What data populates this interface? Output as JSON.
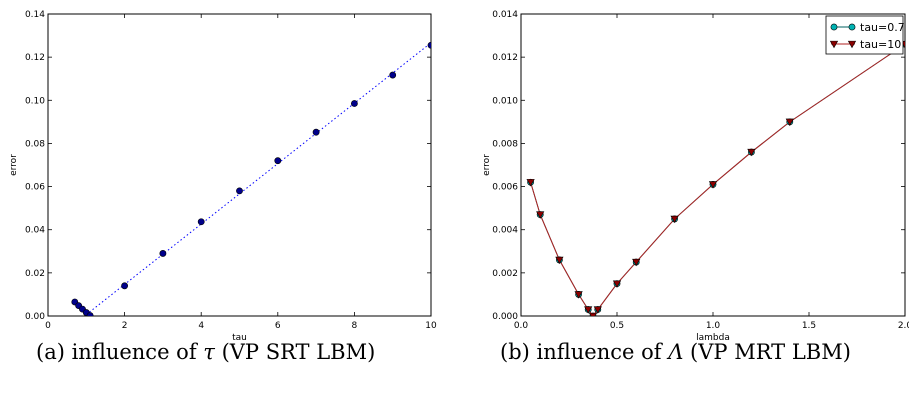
{
  "captions": {
    "a": {
      "prefix": "(a) influence of ",
      "symbol": "τ",
      "suffix": " (VP SRT LBM)"
    },
    "b": {
      "prefix": "(b) influence of ",
      "symbol": "Λ",
      "suffix": " (VP MRT LBM)"
    }
  },
  "chart_data": [
    {
      "type": "scatter",
      "xlabel": "tau",
      "ylabel": "error",
      "xlim": [
        0,
        10
      ],
      "ylim": [
        0,
        0.14
      ],
      "xticks": [
        0,
        2,
        4,
        6,
        8,
        10
      ],
      "yticks": [
        0.0,
        0.02,
        0.04,
        0.06,
        0.08,
        0.1,
        0.12,
        0.14
      ],
      "x_tick_labels": [
        "0",
        "2",
        "4",
        "6",
        "8",
        "10"
      ],
      "y_tick_labels": [
        "0.00",
        "0.02",
        "0.04",
        "0.06",
        "0.08",
        "0.10",
        "0.12",
        "0.14"
      ],
      "grid": false,
      "series": [
        {
          "color": "#00008b",
          "marker": "circle",
          "line_style": "dotted",
          "line_color": "#0000ff",
          "x": [
            0.7,
            0.8,
            0.9,
            1.0,
            1.1,
            2,
            3,
            4,
            5,
            6,
            7,
            8,
            9,
            10
          ],
          "y": [
            0.0065,
            0.0048,
            0.0032,
            0.0016,
            0.0002,
            0.014,
            0.029,
            0.0437,
            0.058,
            0.072,
            0.0852,
            0.0985,
            0.1117,
            0.1255
          ]
        }
      ]
    },
    {
      "type": "line",
      "xlabel": "lambda",
      "ylabel": "error",
      "xlim": [
        0,
        2
      ],
      "ylim": [
        0,
        0.014
      ],
      "xticks": [
        0,
        0.5,
        1.0,
        1.5,
        2.0
      ],
      "yticks": [
        0.0,
        0.002,
        0.004,
        0.006,
        0.008,
        0.01,
        0.012,
        0.014
      ],
      "x_tick_labels": [
        "0.0",
        "0.5",
        "1.0",
        "1.5",
        "2.0"
      ],
      "y_tick_labels": [
        "0.000",
        "0.002",
        "0.004",
        "0.006",
        "0.008",
        "0.010",
        "0.012",
        "0.014"
      ],
      "grid": false,
      "legend_position": "top-right",
      "x": [
        0.05,
        0.1,
        0.2,
        0.3,
        0.35,
        0.375,
        0.4,
        0.5,
        0.6,
        0.8,
        1.0,
        1.2,
        1.4,
        2.0
      ],
      "series": [
        {
          "name": "tau=0.7",
          "color": "#00b3b3",
          "line_color": "#006060",
          "marker": "circle",
          "values": [
            0.0062,
            0.0047,
            0.0026,
            0.001,
            0.0003,
            0.0,
            0.0003,
            0.0015,
            0.0025,
            0.0045,
            0.0061,
            0.0076,
            0.009,
            0.0126
          ]
        },
        {
          "name": "tau=10",
          "color": "#8b0000",
          "line_color": "#b22222",
          "marker": "triangle-down",
          "values": [
            0.0062,
            0.0047,
            0.0026,
            0.001,
            0.0003,
            0.0,
            0.0003,
            0.0015,
            0.0025,
            0.0045,
            0.0061,
            0.0076,
            0.009,
            0.0126
          ]
        }
      ]
    }
  ]
}
